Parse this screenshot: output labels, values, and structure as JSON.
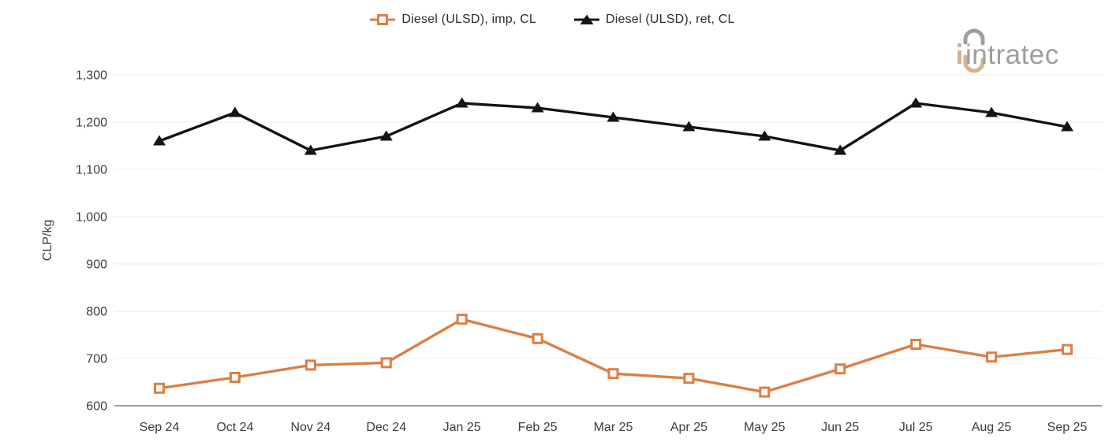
{
  "chart_data": {
    "type": "line",
    "title": "",
    "xlabel": "",
    "ylabel": "CLP/kg",
    "ylim": [
      600,
      1300
    ],
    "ytick_step": 100,
    "grid": "horizontal",
    "legend_position": "top-center",
    "categories": [
      "Sep 24",
      "Oct 24",
      "Nov 24",
      "Dec 24",
      "Jan 25",
      "Feb 25",
      "Mar 25",
      "Apr 25",
      "May 25",
      "Jun 25",
      "Jul 25",
      "Aug 25",
      "Sep 25"
    ],
    "series": [
      {
        "name": "Diesel (ULSD), imp, CL",
        "marker": "hollow-square",
        "color": "#DB7F45",
        "values": [
          637,
          660,
          686,
          691,
          783,
          742,
          668,
          658,
          629,
          678,
          730,
          703,
          719
        ]
      },
      {
        "name": "Diesel (ULSD), ret, CL",
        "marker": "filled-triangle",
        "color": "#141414",
        "values": [
          1160,
          1220,
          1140,
          1170,
          1240,
          1230,
          1210,
          1190,
          1170,
          1140,
          1240,
          1220,
          1190
        ]
      }
    ]
  },
  "logo": {
    "text": "intratec",
    "text_color": "#9E9E9E",
    "accent_color": "#D5B18D"
  },
  "style_colors": {
    "grid_line": "#F2F2F2",
    "axis_line": "#7F7F7F",
    "tick_text": "#3C3C3C"
  }
}
